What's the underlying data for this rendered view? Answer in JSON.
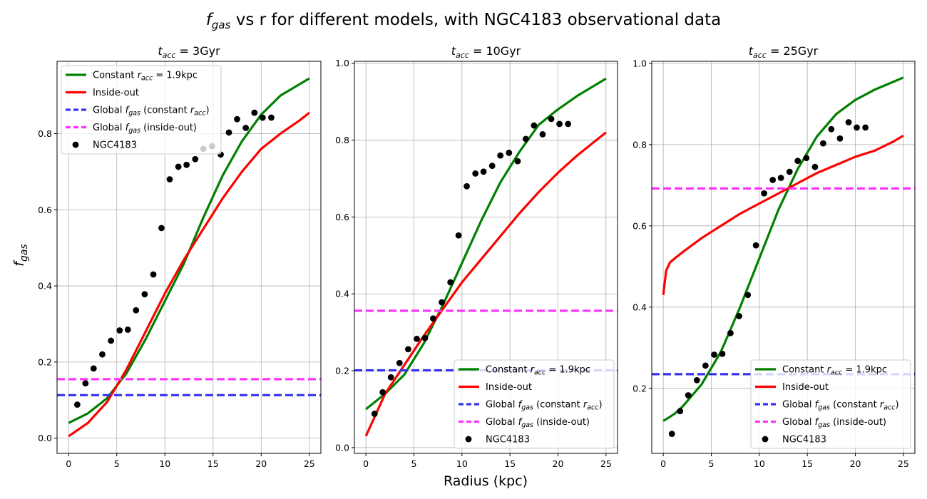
{
  "figure": {
    "title_pre": "f",
    "title_sub": "gas",
    "title_rest": " vs r for different models, with NGC4183 observational data",
    "xlabel": "Radius (kpc)",
    "ylabel_main": "f",
    "ylabel_sub": "gas"
  },
  "chart_data": [
    {
      "type": "line",
      "title_sym": "t",
      "title_sub": "acc",
      "title_val": " = 3Gyr",
      "xlim": [
        -1.2,
        26.2
      ],
      "ylim": [
        -0.04,
        0.99
      ],
      "xticks": [
        0,
        5,
        10,
        15,
        20,
        25
      ],
      "yticks": [
        0.0,
        0.2,
        0.4,
        0.6,
        0.8
      ],
      "grid": true,
      "legend_position": "upper left",
      "x": [
        0,
        2,
        4,
        6,
        8,
        10,
        12,
        14,
        16,
        18,
        20,
        22,
        24,
        25
      ],
      "series": [
        {
          "name": "Constant r_acc = 1.9kpc",
          "legend_parts": [
            "Constant ",
            "r",
            "acc",
            " = 1.9kpc"
          ],
          "color": "#008000",
          "style": "solid",
          "values": [
            0.04,
            0.065,
            0.105,
            0.17,
            0.26,
            0.36,
            0.46,
            0.58,
            0.69,
            0.78,
            0.85,
            0.9,
            0.93,
            0.945
          ]
        },
        {
          "name": "Inside-out",
          "legend_parts": [
            "Inside-out"
          ],
          "color": "#ff0000",
          "style": "solid",
          "values": [
            0.005,
            0.04,
            0.095,
            0.18,
            0.28,
            0.38,
            0.47,
            0.55,
            0.63,
            0.7,
            0.76,
            0.8,
            0.835,
            0.855
          ]
        },
        {
          "name": "Global f_gas (constant r_acc)",
          "legend_parts": [
            "Global ",
            "f",
            "gas",
            " (constant ",
            "r",
            "acc",
            ")"
          ],
          "color": "#3333ee",
          "style": "dashed",
          "values": [
            0.113,
            0.113,
            0.113,
            0.113,
            0.113,
            0.113,
            0.113,
            0.113,
            0.113,
            0.113,
            0.113,
            0.113,
            0.113,
            0.113
          ]
        },
        {
          "name": "Global f_gas (inside-out)",
          "legend_parts": [
            "Global ",
            "f",
            "gas",
            " (inside-out)"
          ],
          "color": "#ff33ff",
          "style": "dashed",
          "values": [
            0.155,
            0.155,
            0.155,
            0.155,
            0.155,
            0.155,
            0.155,
            0.155,
            0.155,
            0.155,
            0.155,
            0.155,
            0.155,
            0.155
          ]
        }
      ],
      "observations": {
        "name": "NGC4183",
        "color": "#000000",
        "x": [
          0.9,
          1.75,
          2.6,
          3.5,
          4.4,
          5.3,
          6.15,
          7.0,
          7.9,
          8.8,
          9.65,
          10.5,
          11.4,
          12.25,
          13.15,
          14.0,
          14.9,
          15.8,
          16.65,
          17.5,
          18.4,
          19.3,
          20.15,
          21.05
        ],
        "y": [
          0.088,
          0.144,
          0.183,
          0.22,
          0.256,
          0.283,
          0.285,
          0.336,
          0.378,
          0.43,
          0.552,
          0.68,
          0.713,
          0.718,
          0.733,
          0.76,
          0.767,
          0.745,
          0.803,
          0.838,
          0.815,
          0.855,
          0.842,
          0.842
        ]
      }
    },
    {
      "type": "line",
      "title_sym": "t",
      "title_sub": "acc",
      "title_val": " = 10Gyr",
      "xlim": [
        -1.2,
        26.2
      ],
      "ylim": [
        -0.015,
        1.005
      ],
      "xticks": [
        0,
        5,
        10,
        15,
        20,
        25
      ],
      "yticks": [
        0.0,
        0.2,
        0.4,
        0.6,
        0.8,
        1.0
      ],
      "grid": true,
      "legend_position": "lower right",
      "x": [
        0,
        2,
        4,
        6,
        8,
        10,
        12,
        14,
        16,
        18,
        20,
        22,
        24,
        25
      ],
      "series": [
        {
          "name": "Constant r_acc = 1.9kpc",
          "legend_parts": [
            "Constant ",
            "r",
            "acc",
            " = 1.9kpc"
          ],
          "color": "#008000",
          "style": "solid",
          "values": [
            0.1,
            0.14,
            0.19,
            0.27,
            0.37,
            0.48,
            0.59,
            0.69,
            0.77,
            0.84,
            0.88,
            0.915,
            0.945,
            0.96
          ]
        },
        {
          "name": "Inside-out",
          "legend_parts": [
            "Inside-out"
          ],
          "color": "#ff0000",
          "style": "solid",
          "values": [
            0.03,
            0.14,
            0.215,
            0.29,
            0.36,
            0.43,
            0.49,
            0.55,
            0.61,
            0.665,
            0.715,
            0.76,
            0.8,
            0.82
          ]
        },
        {
          "name": "Global f_gas (constant r_acc)",
          "legend_parts": [
            "Global ",
            "f",
            "gas",
            " (constant ",
            "r",
            "acc",
            ")"
          ],
          "color": "#3333ee",
          "style": "dashed",
          "values": [
            0.201,
            0.201,
            0.201,
            0.201,
            0.201,
            0.201,
            0.201,
            0.201,
            0.201,
            0.201,
            0.201,
            0.201,
            0.201,
            0.201
          ]
        },
        {
          "name": "Global f_gas (inside-out)",
          "legend_parts": [
            "Global ",
            "f",
            "gas",
            " (inside-out)"
          ],
          "color": "#ff33ff",
          "style": "dashed",
          "values": [
            0.356,
            0.356,
            0.356,
            0.356,
            0.356,
            0.356,
            0.356,
            0.356,
            0.356,
            0.356,
            0.356,
            0.356,
            0.356,
            0.356
          ]
        }
      ],
      "observations": {
        "name": "NGC4183",
        "color": "#000000",
        "x": [
          0.9,
          1.75,
          2.6,
          3.5,
          4.4,
          5.3,
          6.15,
          7.0,
          7.9,
          8.8,
          9.65,
          10.5,
          11.4,
          12.25,
          13.15,
          14.0,
          14.9,
          15.8,
          16.65,
          17.5,
          18.4,
          19.3,
          20.15,
          21.05
        ],
        "y": [
          0.088,
          0.144,
          0.183,
          0.22,
          0.256,
          0.283,
          0.285,
          0.336,
          0.378,
          0.43,
          0.552,
          0.68,
          0.713,
          0.718,
          0.733,
          0.76,
          0.767,
          0.745,
          0.803,
          0.838,
          0.815,
          0.855,
          0.842,
          0.842
        ]
      }
    },
    {
      "type": "line",
      "title_sym": "t",
      "title_sub": "acc",
      "title_val": " = 25Gyr",
      "xlim": [
        -1.2,
        26.2
      ],
      "ylim": [
        0.04,
        1.005
      ],
      "xticks": [
        0,
        5,
        10,
        15,
        20,
        25
      ],
      "yticks": [
        0.2,
        0.4,
        0.6,
        0.8,
        1.0
      ],
      "grid": true,
      "legend_position": "lower right",
      "x": [
        0,
        0.3,
        0.7,
        1.2,
        2,
        4,
        6,
        8,
        10,
        12,
        14,
        16,
        18,
        20,
        22,
        24,
        25
      ],
      "series": [
        {
          "name": "Constant r_acc = 1.9kpc",
          "legend_parts": [
            "Constant ",
            "r",
            "acc",
            " = 1.9kpc"
          ],
          "color": "#008000",
          "style": "solid",
          "values": [
            0.12,
            0.124,
            0.13,
            0.138,
            0.155,
            0.21,
            0.29,
            0.4,
            0.52,
            0.64,
            0.74,
            0.82,
            0.875,
            0.91,
            0.935,
            0.955,
            0.965
          ]
        },
        {
          "name": "Inside-out",
          "legend_parts": [
            "Inside-out"
          ],
          "color": "#ff0000",
          "style": "solid",
          "values": [
            0.43,
            0.49,
            0.51,
            0.52,
            0.535,
            0.57,
            0.6,
            0.63,
            0.655,
            0.68,
            0.705,
            0.73,
            0.75,
            0.77,
            0.785,
            0.808,
            0.822
          ]
        },
        {
          "name": "Global f_gas (constant r_acc)",
          "legend_parts": [
            "Global ",
            "f",
            "gas",
            " (constant ",
            "r",
            "acc",
            ")"
          ],
          "color": "#3333ee",
          "style": "dashed",
          "values": [
            0.235,
            0.235,
            0.235,
            0.235,
            0.235,
            0.235,
            0.235,
            0.235,
            0.235,
            0.235,
            0.235,
            0.235,
            0.235,
            0.235,
            0.235,
            0.235,
            0.235
          ]
        },
        {
          "name": "Global f_gas (inside-out)",
          "legend_parts": [
            "Global ",
            "f",
            "gas",
            " (inside-out)"
          ],
          "color": "#ff33ff",
          "style": "dashed",
          "values": [
            0.692,
            0.692,
            0.692,
            0.692,
            0.692,
            0.692,
            0.692,
            0.692,
            0.692,
            0.692,
            0.692,
            0.692,
            0.692,
            0.692,
            0.692,
            0.692,
            0.692
          ]
        }
      ],
      "observations": {
        "name": "NGC4183",
        "color": "#000000",
        "x": [
          0.9,
          1.75,
          2.6,
          3.5,
          4.4,
          5.3,
          6.15,
          7.0,
          7.9,
          8.8,
          9.65,
          10.5,
          11.4,
          12.25,
          13.15,
          14.0,
          14.9,
          15.8,
          16.65,
          17.5,
          18.4,
          19.3,
          20.15,
          21.05
        ],
        "y": [
          0.088,
          0.144,
          0.183,
          0.22,
          0.256,
          0.283,
          0.285,
          0.336,
          0.378,
          0.43,
          0.552,
          0.68,
          0.713,
          0.718,
          0.733,
          0.76,
          0.767,
          0.745,
          0.803,
          0.838,
          0.815,
          0.855,
          0.842,
          0.842
        ]
      }
    }
  ]
}
